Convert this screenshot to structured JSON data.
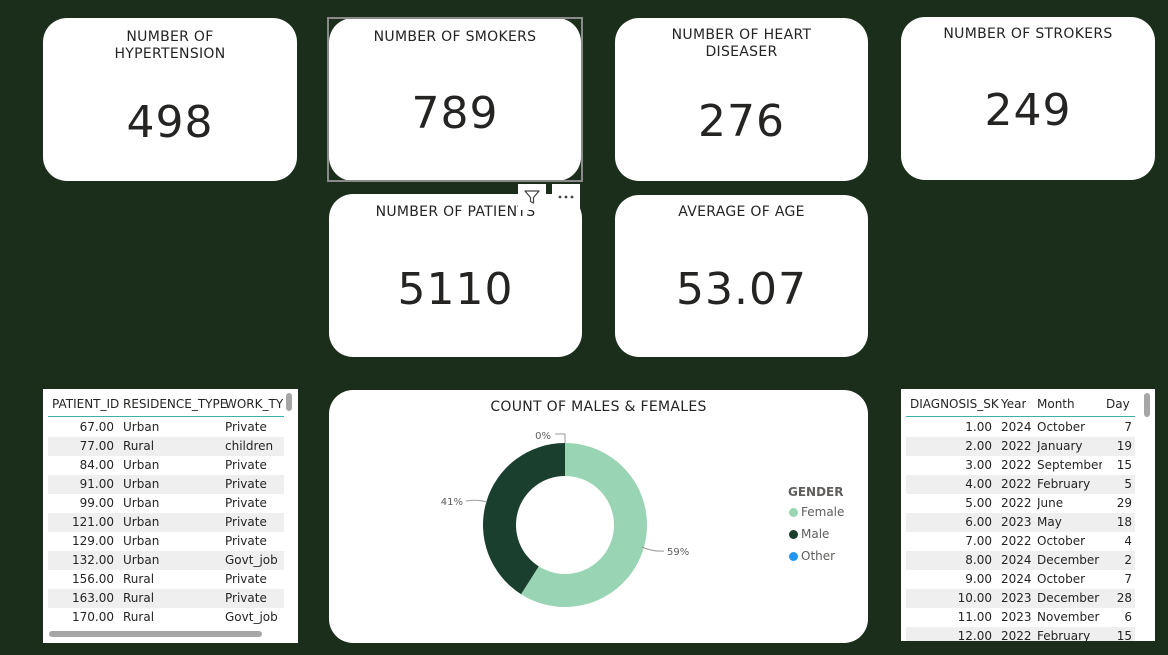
{
  "kpis": {
    "hypertension": {
      "title": "NUMBER OF\nHYPERTENSION",
      "value": "498"
    },
    "smokers": {
      "title": "NUMBER OF SMOKERS",
      "value": "789"
    },
    "heart": {
      "title": "NUMBER OF HEART\nDISEASER",
      "value": "276"
    },
    "strokers": {
      "title": "NUMBER OF STROKERS",
      "value": "249"
    },
    "patients": {
      "title": "NUMBER OF PATIENTS",
      "value": "5110"
    },
    "age": {
      "title": "AVERAGE OF AGE",
      "value": "53.07"
    }
  },
  "icons": {
    "filter": "filter-icon",
    "more": "more-options-icon"
  },
  "patients_table": {
    "columns": [
      "PATIENT_ID",
      "RESIDENCE_TYPE",
      "WORK_TYP"
    ],
    "rows": [
      [
        "67.00",
        "Urban",
        "Private"
      ],
      [
        "77.00",
        "Rural",
        "children"
      ],
      [
        "84.00",
        "Urban",
        "Private"
      ],
      [
        "91.00",
        "Urban",
        "Private"
      ],
      [
        "99.00",
        "Urban",
        "Private"
      ],
      [
        "121.00",
        "Urban",
        "Private"
      ],
      [
        "129.00",
        "Urban",
        "Private"
      ],
      [
        "132.00",
        "Urban",
        "Govt_job"
      ],
      [
        "156.00",
        "Rural",
        "Private"
      ],
      [
        "163.00",
        "Rural",
        "Private"
      ],
      [
        "170.00",
        "Rural",
        "Govt_job"
      ]
    ]
  },
  "diagnosis_table": {
    "columns": [
      "DIAGNOSIS_SK",
      "Year",
      "Month",
      "Day"
    ],
    "rows": [
      [
        "1.00",
        "2024",
        "October",
        "7"
      ],
      [
        "2.00",
        "2022",
        "January",
        "19"
      ],
      [
        "3.00",
        "2022",
        "September",
        "15"
      ],
      [
        "4.00",
        "2022",
        "February",
        "5"
      ],
      [
        "5.00",
        "2022",
        "June",
        "29"
      ],
      [
        "6.00",
        "2023",
        "May",
        "18"
      ],
      [
        "7.00",
        "2022",
        "October",
        "4"
      ],
      [
        "8.00",
        "2024",
        "December",
        "2"
      ],
      [
        "9.00",
        "2024",
        "October",
        "7"
      ],
      [
        "10.00",
        "2023",
        "December",
        "28"
      ],
      [
        "11.00",
        "2023",
        "November",
        "6"
      ],
      [
        "12.00",
        "2022",
        "February",
        "15"
      ]
    ]
  },
  "chart_data": {
    "type": "pie",
    "title": "COUNT OF MALES & FEMALES",
    "legend_title": "GENDER",
    "legend_position": "right",
    "categories": [
      "Female",
      "Male",
      "Other"
    ],
    "values": [
      59,
      41,
      0
    ],
    "labels": [
      "59%",
      "41%",
      "0%"
    ],
    "colors": [
      "#99d5b4",
      "#1b3f2e",
      "#2196f3"
    ],
    "donut": true
  }
}
